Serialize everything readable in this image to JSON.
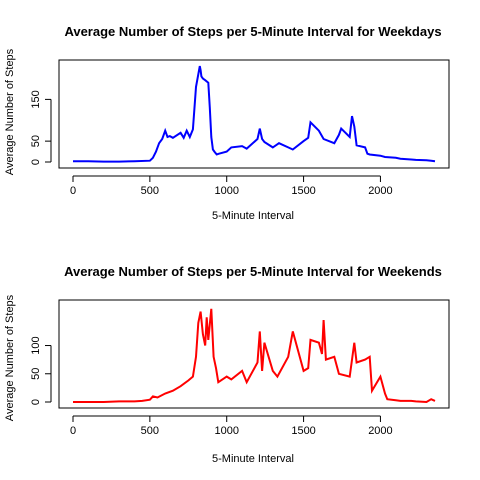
{
  "chart_data": [
    {
      "type": "line",
      "title": "Average Number of Steps per 5-Minute Interval for Weekdays",
      "xlabel": "5-Minute Interval",
      "ylabel": "Average Number of Steps",
      "xlim": [
        0,
        2355
      ],
      "ylim": [
        0,
        230
      ],
      "xticks": [
        0,
        500,
        1000,
        1500,
        2000
      ],
      "yticks": [
        0,
        50,
        150
      ],
      "color": "#0000ff",
      "grid": false,
      "series": [
        {
          "x": [
            0,
            100,
            200,
            300,
            400,
            500,
            520,
            540,
            560,
            580,
            600,
            615,
            630,
            650,
            700,
            720,
            740,
            760,
            780,
            800,
            815,
            825,
            830,
            835,
            845,
            860,
            880,
            890,
            900,
            910,
            920,
            935,
            950,
            1000,
            1030,
            1100,
            1130,
            1200,
            1215,
            1230,
            1245,
            1300,
            1320,
            1340,
            1400,
            1430,
            1500,
            1530,
            1545,
            1600,
            1630,
            1700,
            1730,
            1745,
            1800,
            1815,
            1830,
            1845,
            1900,
            1915,
            1930,
            2000,
            2030,
            2100,
            2130,
            2200,
            2230,
            2300,
            2330,
            2355
          ],
          "y": [
            2,
            2,
            1,
            1,
            2,
            3,
            10,
            25,
            45,
            55,
            75,
            60,
            62,
            58,
            70,
            58,
            75,
            60,
            78,
            180,
            210,
            230,
            220,
            205,
            200,
            196,
            190,
            130,
            60,
            30,
            25,
            18,
            20,
            25,
            35,
            38,
            32,
            55,
            80,
            55,
            48,
            35,
            40,
            45,
            35,
            30,
            50,
            58,
            95,
            75,
            55,
            45,
            65,
            80,
            60,
            110,
            85,
            40,
            35,
            20,
            18,
            15,
            12,
            10,
            8,
            6,
            5,
            4,
            3,
            2
          ]
        }
      ]
    },
    {
      "type": "line",
      "title": "Average Number of Steps per 5-Minute Interval for Weekends",
      "xlabel": "5-Minute Interval",
      "ylabel": "Average Number of Steps",
      "xlim": [
        0,
        2355
      ],
      "ylim": [
        0,
        170
      ],
      "xticks": [
        0,
        500,
        1000,
        1500,
        2000
      ],
      "yticks": [
        0,
        50,
        100
      ],
      "color": "#ff0000",
      "grid": false,
      "series": [
        {
          "x": [
            0,
            100,
            200,
            300,
            400,
            450,
            500,
            520,
            550,
            600,
            650,
            700,
            750,
            780,
            800,
            815,
            830,
            845,
            860,
            870,
            880,
            900,
            915,
            930,
            945,
            1000,
            1030,
            1100,
            1130,
            1200,
            1215,
            1230,
            1245,
            1300,
            1330,
            1400,
            1430,
            1500,
            1530,
            1545,
            1600,
            1620,
            1630,
            1645,
            1700,
            1730,
            1800,
            1830,
            1845,
            1900,
            1930,
            1945,
            2000,
            2030,
            2045,
            2100,
            2130,
            2200,
            2230,
            2300,
            2330,
            2355
          ],
          "y": [
            0,
            0,
            0,
            1,
            1,
            2,
            4,
            10,
            8,
            15,
            20,
            28,
            38,
            45,
            80,
            140,
            160,
            120,
            100,
            150,
            110,
            165,
            80,
            60,
            35,
            45,
            40,
            55,
            35,
            70,
            125,
            55,
            105,
            55,
            45,
            80,
            125,
            55,
            60,
            110,
            105,
            85,
            145,
            75,
            80,
            50,
            45,
            105,
            70,
            75,
            80,
            20,
            45,
            15,
            5,
            3,
            2,
            2,
            1,
            0,
            5,
            2
          ]
        }
      ]
    }
  ]
}
